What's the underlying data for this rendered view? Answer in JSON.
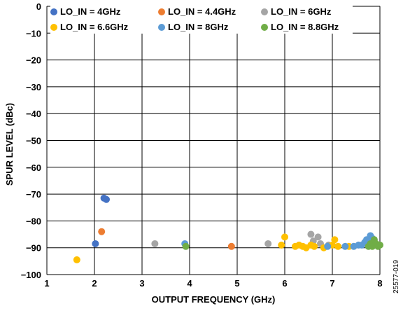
{
  "chart_data": {
    "type": "scatter",
    "xlabel": "OUTPUT FREQUENCY (GHz)",
    "ylabel": "SPUR LEVEL (dBc)",
    "xlim": [
      1,
      8
    ],
    "ylim": [
      -100,
      0
    ],
    "xticks": [
      1,
      2,
      3,
      4,
      5,
      6,
      7,
      8
    ],
    "yticks": [
      0,
      -10,
      -20,
      -30,
      -40,
      -50,
      -60,
      -70,
      -80,
      -90,
      -100
    ],
    "grid": true,
    "legend_position": "top",
    "series": [
      {
        "name": "LO_IN = 4GHz",
        "color": "#4472c4",
        "x": [
          2.02,
          2.2,
          2.25
        ],
        "y": [
          -88.5,
          -71.5,
          -72
        ]
      },
      {
        "name": "LO_IN = 4.4GHz",
        "color": "#ed7d31",
        "x": [
          2.15,
          4.88
        ],
        "y": [
          -84,
          -89.5
        ]
      },
      {
        "name": "LO_IN = 6GHz",
        "color": "#a5a5a5",
        "x": [
          3.27,
          5.65,
          6.55,
          6.6,
          6.7,
          6.75,
          6.92
        ],
        "y": [
          -88.5,
          -88.5,
          -85,
          -87.5,
          -86,
          -88.5,
          -89
        ]
      },
      {
        "name": "LO_IN = 6.6GHz",
        "color": "#ffc000",
        "x": [
          1.63,
          5.93,
          6.0,
          6.22,
          6.3,
          6.38,
          6.45,
          6.55,
          6.62,
          6.82,
          7.0,
          7.05,
          7.12,
          7.35
        ],
        "y": [
          -94.5,
          -89,
          -86,
          -89.5,
          -89,
          -89.5,
          -90,
          -89,
          -89.5,
          -90,
          -89,
          -87,
          -89.5,
          -89.5
        ]
      },
      {
        "name": "LO_IN = 8GHz",
        "color": "#5b9bd5",
        "x": [
          3.9,
          6.9,
          7.27,
          7.45,
          7.55,
          7.62,
          7.68,
          7.72,
          7.76,
          7.8,
          7.84,
          7.88
        ],
        "y": [
          -88.5,
          -89.5,
          -89.5,
          -89.5,
          -89,
          -89,
          -88,
          -87,
          -89,
          -85.5,
          -86.5,
          -87
        ]
      },
      {
        "name": "LO_IN = 8.8GHz",
        "color": "#70ad47",
        "x": [
          3.92,
          7.76,
          7.8,
          7.84,
          7.88,
          7.92,
          7.96,
          8.0
        ],
        "y": [
          -89.5,
          -89.5,
          -88.5,
          -89.5,
          -87,
          -88.5,
          -89.5,
          -89
        ]
      }
    ]
  },
  "figure_code": "25577-019"
}
